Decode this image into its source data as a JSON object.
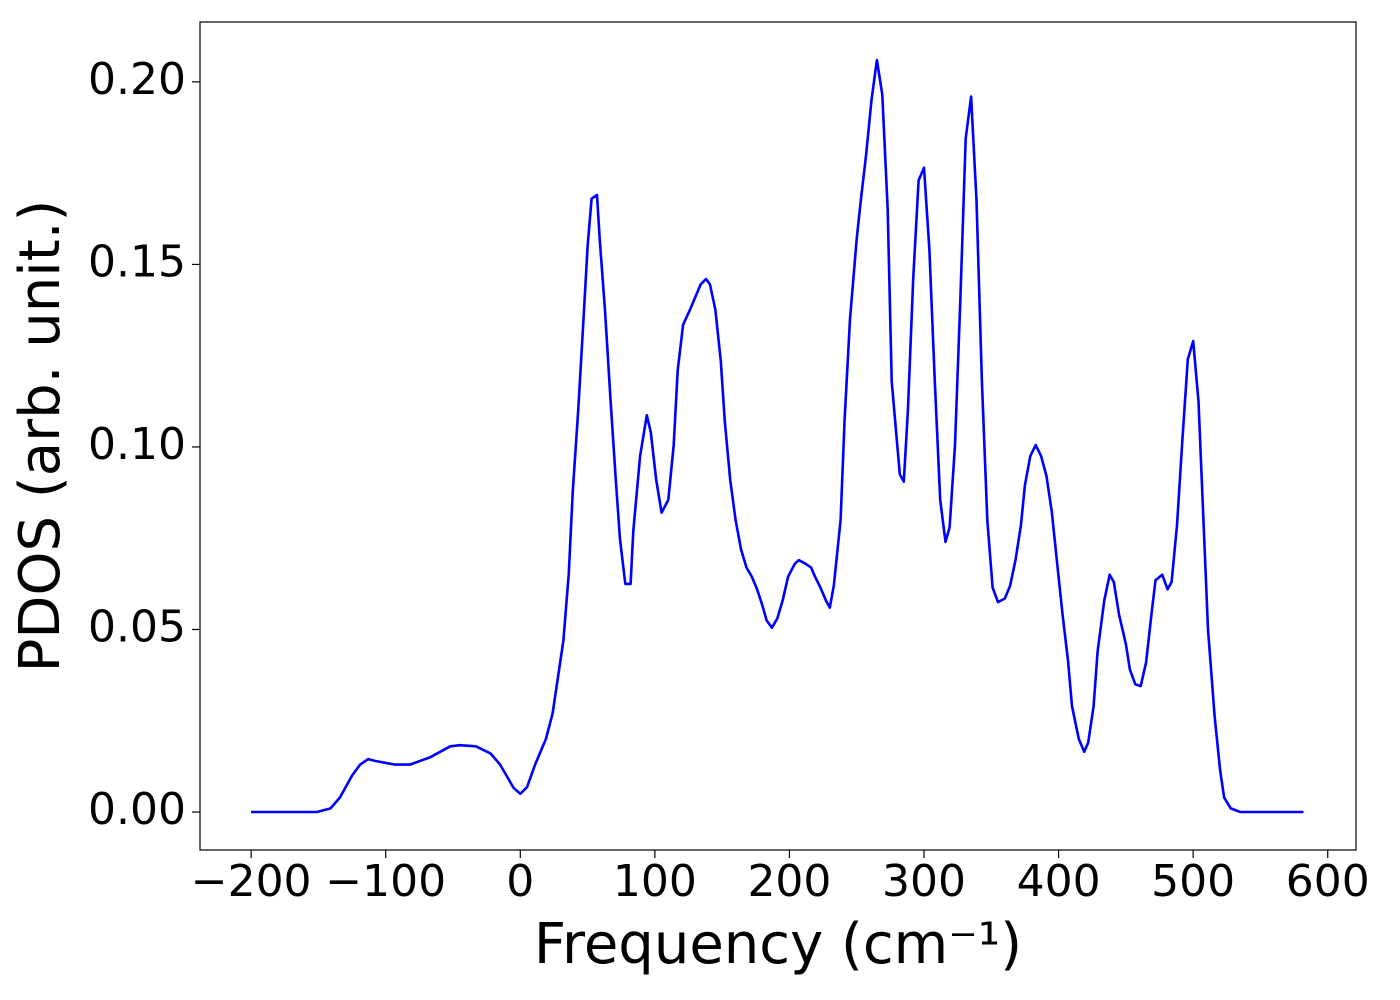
{
  "chart_data": {
    "type": "line",
    "xlabel": "Frequency (cm⁻¹)",
    "ylabel": "PDOS (arb. unit.)",
    "x": [
      -200,
      -151,
      -141,
      -134,
      -125,
      -119,
      -113,
      -108,
      -93,
      -82,
      -67,
      -52,
      -45,
      -33,
      -22,
      -15,
      -5,
      0,
      5,
      11,
      19,
      24,
      28,
      32,
      36,
      39,
      43,
      47,
      50,
      53,
      57,
      59,
      63,
      67,
      71,
      74,
      78,
      82,
      84,
      89,
      94,
      97,
      101,
      105,
      110,
      114,
      117,
      121,
      126,
      134,
      138,
      141,
      145,
      149,
      152,
      156,
      160,
      164,
      168,
      172,
      176,
      180,
      183,
      187,
      191,
      195,
      199,
      204,
      207,
      212,
      216,
      219,
      223,
      227,
      230,
      233,
      238,
      241,
      245,
      250,
      253,
      257,
      261,
      265,
      269,
      273,
      276,
      282,
      285,
      288,
      292,
      296,
      300,
      304,
      308,
      312,
      316,
      319,
      323,
      327,
      331,
      335,
      339,
      343,
      347,
      351,
      355,
      360,
      364,
      368,
      372,
      375,
      379,
      383,
      387,
      391,
      395,
      399,
      403,
      407,
      410,
      415,
      419,
      422,
      426,
      429,
      434,
      438,
      441,
      445,
      450,
      453,
      457,
      461,
      465,
      469,
      472,
      477,
      481,
      484,
      488,
      492,
      496,
      500,
      504,
      507,
      511,
      516,
      520,
      523,
      528,
      535,
      582
    ],
    "series": [
      {
        "color": "#0000ff",
        "values": [
          0,
          0,
          0.001,
          0.004,
          0.01,
          0.013,
          0.0145,
          0.014,
          0.013,
          0.013,
          0.015,
          0.018,
          0.0183,
          0.018,
          0.016,
          0.013,
          0.0066,
          0.005,
          0.0068,
          0.013,
          0.02,
          0.027,
          0.037,
          0.047,
          0.065,
          0.088,
          0.11,
          0.135,
          0.155,
          0.168,
          0.169,
          0.157,
          0.137,
          0.113,
          0.091,
          0.075,
          0.0625,
          0.0625,
          0.077,
          0.0975,
          0.1087,
          0.104,
          0.091,
          0.082,
          0.0855,
          0.1005,
          0.121,
          0.1335,
          0.1375,
          0.1445,
          0.146,
          0.1445,
          0.1375,
          0.1235,
          0.107,
          0.091,
          0.08,
          0.072,
          0.067,
          0.0645,
          0.061,
          0.0565,
          0.0525,
          0.0505,
          0.053,
          0.058,
          0.0645,
          0.068,
          0.069,
          0.068,
          0.067,
          0.0645,
          0.0615,
          0.058,
          0.056,
          0.062,
          0.08,
          0.1075,
          0.135,
          0.157,
          0.1675,
          0.18,
          0.195,
          0.206,
          0.1965,
          0.165,
          0.118,
          0.0925,
          0.0905,
          0.11,
          0.146,
          0.173,
          0.1765,
          0.154,
          0.118,
          0.0855,
          0.074,
          0.078,
          0.1005,
          0.14,
          0.1845,
          0.196,
          0.1675,
          0.118,
          0.08,
          0.0615,
          0.0575,
          0.0585,
          0.062,
          0.069,
          0.0785,
          0.0895,
          0.0975,
          0.1005,
          0.0975,
          0.092,
          0.082,
          0.068,
          0.054,
          0.0415,
          0.029,
          0.02,
          0.0165,
          0.019,
          0.029,
          0.044,
          0.058,
          0.065,
          0.063,
          0.054,
          0.046,
          0.039,
          0.035,
          0.0345,
          0.041,
          0.054,
          0.0635,
          0.065,
          0.061,
          0.063,
          0.0785,
          0.102,
          0.124,
          0.129,
          0.1125,
          0.0855,
          0.05,
          0.026,
          0.0115,
          0.004,
          0.001,
          0,
          0
        ]
      }
    ],
    "xlim": [
      -238,
      621
    ],
    "ylim": [
      -0.0104,
      0.2164
    ],
    "xticks": [
      {
        "value": -200,
        "label": "−200"
      },
      {
        "value": -100,
        "label": "−100"
      },
      0,
      100,
      200,
      300,
      400,
      500,
      600
    ],
    "yticks": [
      {
        "value": 0,
        "label": "0.00"
      },
      {
        "value": 0.05,
        "label": "0.05"
      },
      {
        "value": 0.1,
        "label": "0.10"
      },
      {
        "value": 0.15,
        "label": "0.15"
      },
      {
        "value": 0.2,
        "label": "0.20"
      }
    ]
  }
}
